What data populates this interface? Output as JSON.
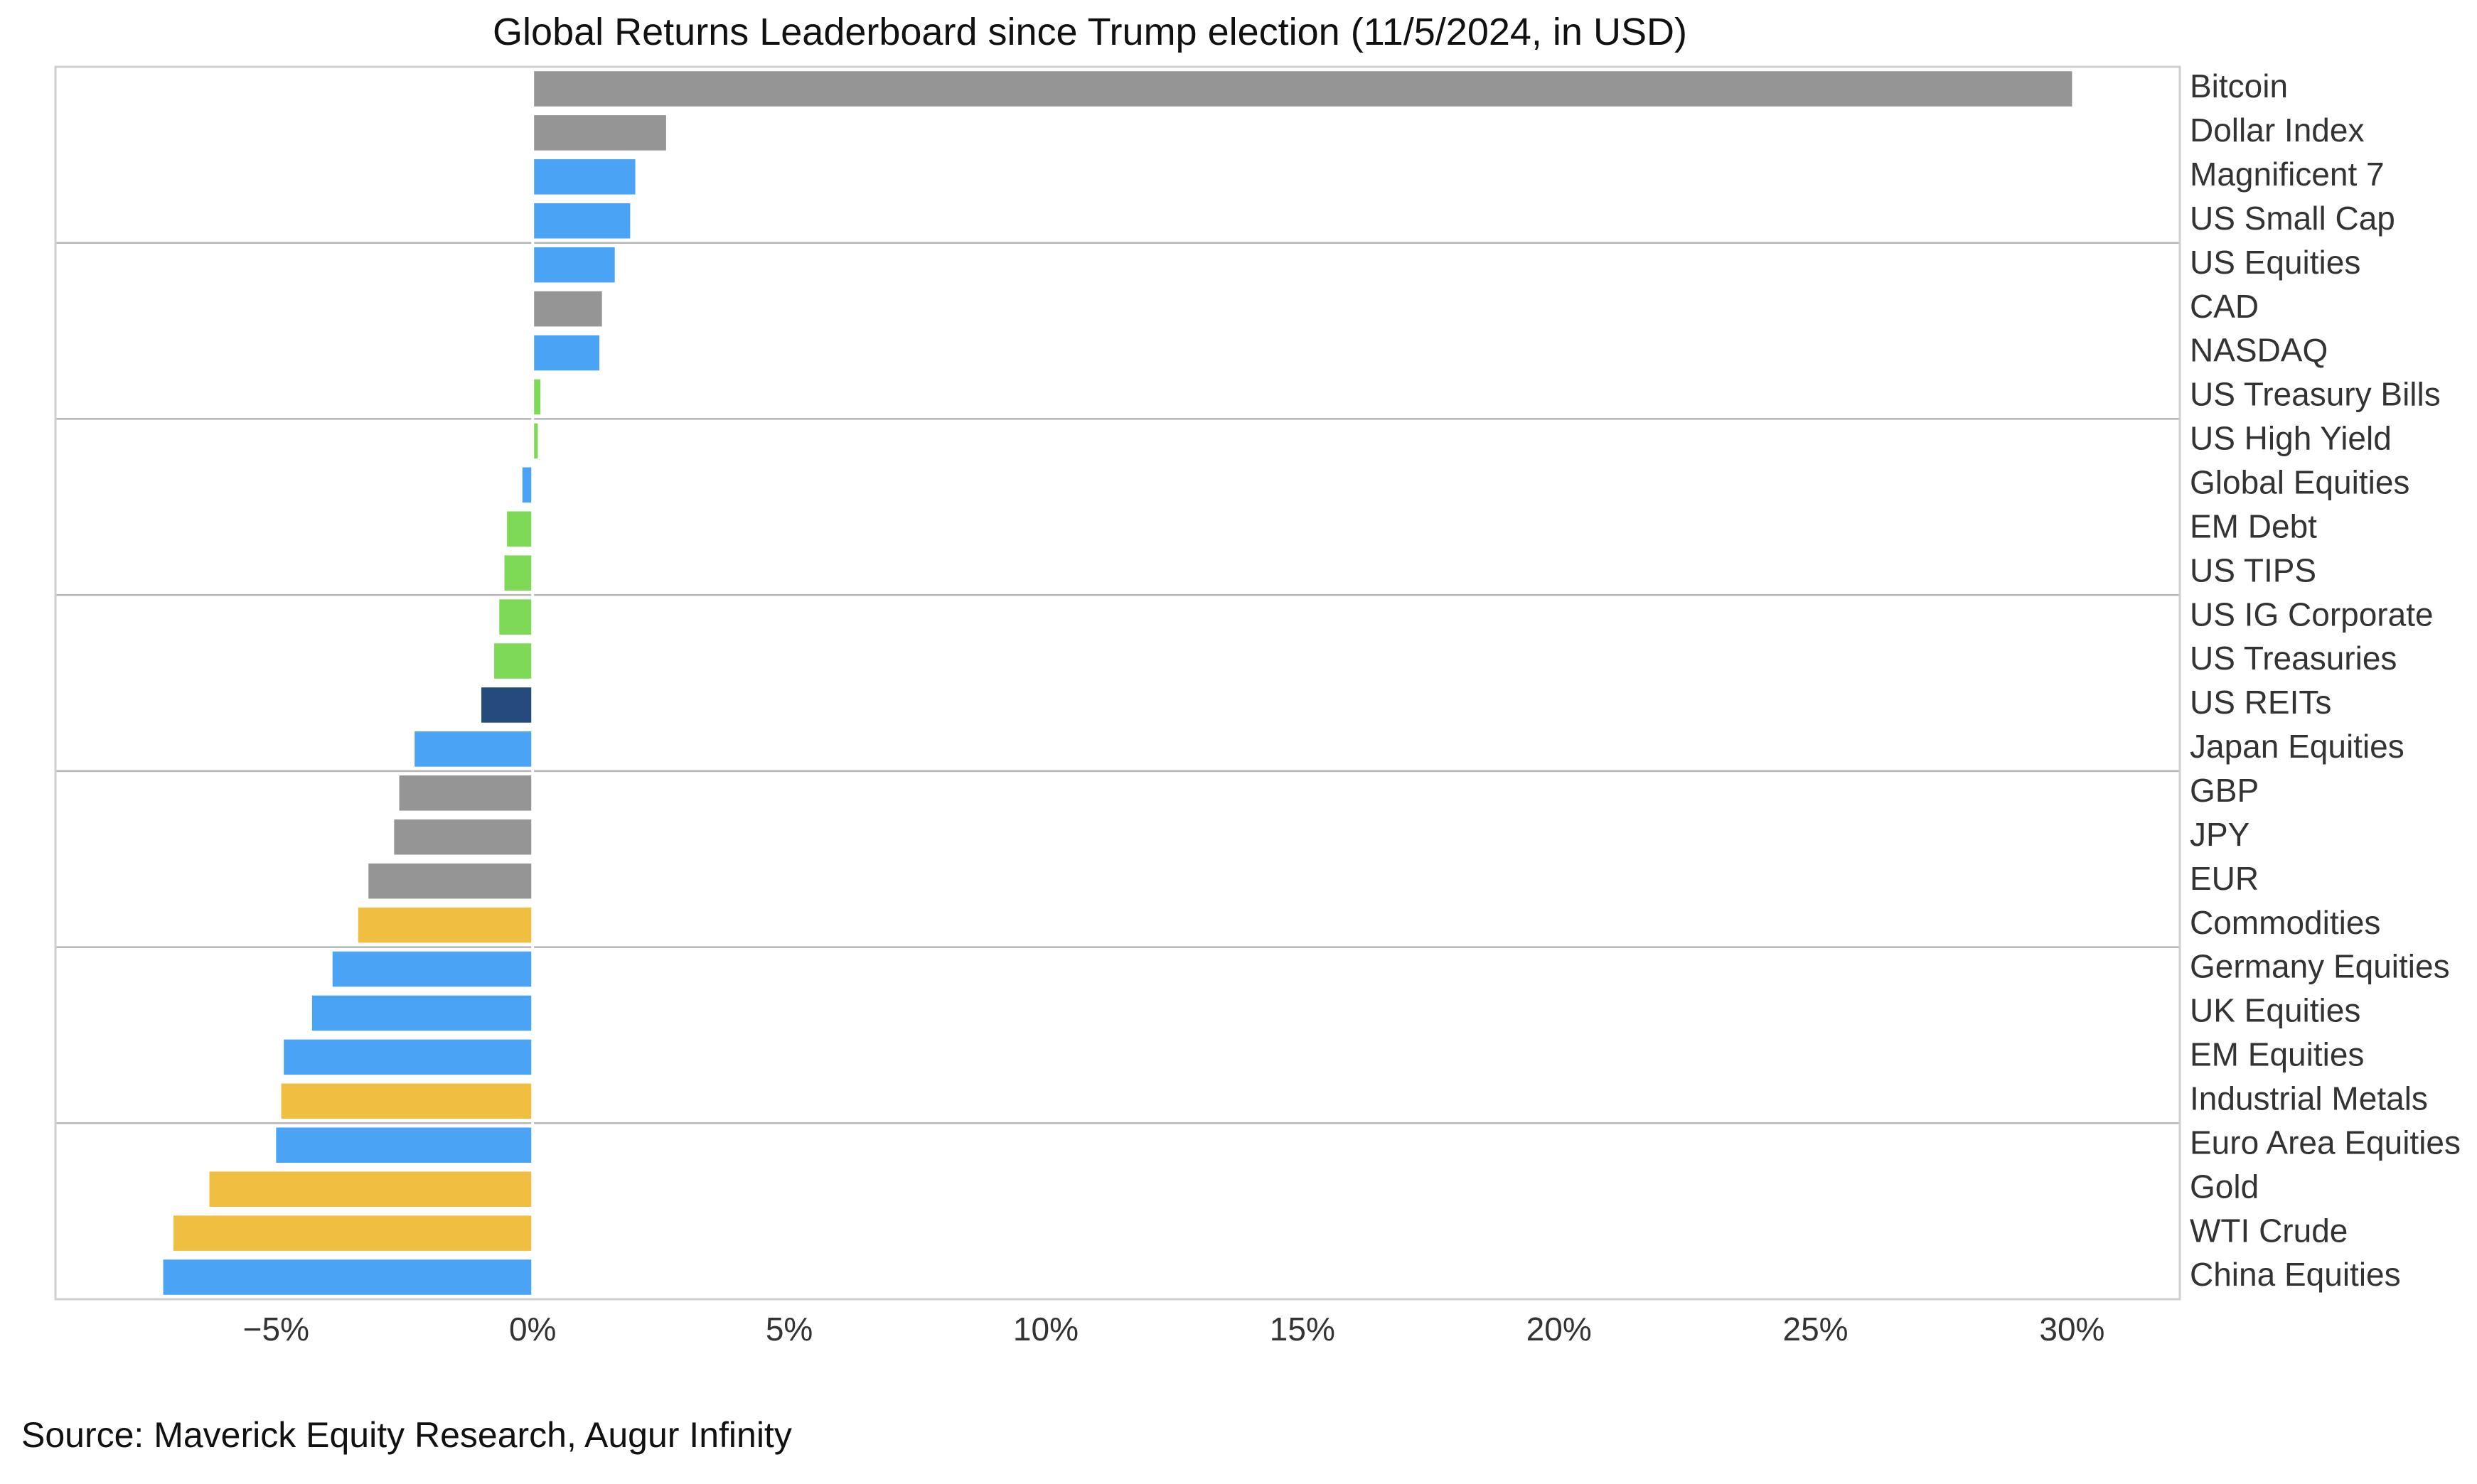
{
  "chart_data": {
    "type": "bar",
    "orientation": "horizontal",
    "title": "Global Returns Leaderboard since Trump election (11/5/2024, in USD)",
    "source": "Source: Maverick Equity Research, Augur Infinity",
    "xlabel": "",
    "ylabel": "",
    "xlim": [
      -9.3,
      32.1
    ],
    "x_ticks": [
      -5,
      0,
      5,
      10,
      15,
      20,
      25,
      30
    ],
    "x_tick_labels": [
      "−5%",
      "0%",
      "5%",
      "10%",
      "15%",
      "20%",
      "25%",
      "30%"
    ],
    "grid": "horizontal separators every 4 rows",
    "legend": "none",
    "label_position": "right",
    "colors": {
      "currency": "#959595",
      "equity": "#4aa3f5",
      "fixed_income": "#7ed957",
      "real_estate": "#254a7c",
      "commodity": "#f0be40"
    },
    "categories": [
      "Bitcoin",
      "Dollar Index",
      "Magnificent 7",
      "US Small Cap",
      "US Equities",
      "CAD",
      "NASDAQ",
      "US Treasury Bills",
      "US High Yield",
      "Global Equities",
      "EM Debt",
      "US TIPS",
      "US IG Corporate",
      "US Treasuries",
      "US REITs",
      "Japan Equities",
      "GBP",
      "JPY",
      "EUR",
      "Commodities",
      "Germany Equities",
      "UK Equities",
      "EM Equities",
      "Industrial Metals",
      "Euro Area Equities",
      "Gold",
      "WTI Crude",
      "China Equities"
    ],
    "values": [
      30.0,
      2.6,
      2.0,
      1.9,
      1.6,
      1.35,
      1.3,
      0.15,
      0.1,
      -0.2,
      -0.5,
      -0.55,
      -0.65,
      -0.75,
      -1.0,
      -2.3,
      -2.6,
      -2.7,
      -3.2,
      -3.4,
      -3.9,
      -4.3,
      -4.85,
      -4.9,
      -5.0,
      -6.3,
      -7.0,
      -7.2
    ],
    "bar_colors": [
      "#959595",
      "#959595",
      "#4aa3f5",
      "#4aa3f5",
      "#4aa3f5",
      "#959595",
      "#4aa3f5",
      "#7ed957",
      "#7ed957",
      "#4aa3f5",
      "#7ed957",
      "#7ed957",
      "#7ed957",
      "#7ed957",
      "#254a7c",
      "#4aa3f5",
      "#959595",
      "#959595",
      "#959595",
      "#f0be40",
      "#4aa3f5",
      "#4aa3f5",
      "#4aa3f5",
      "#f0be40",
      "#4aa3f5",
      "#f0be40",
      "#f0be40",
      "#4aa3f5"
    ]
  }
}
